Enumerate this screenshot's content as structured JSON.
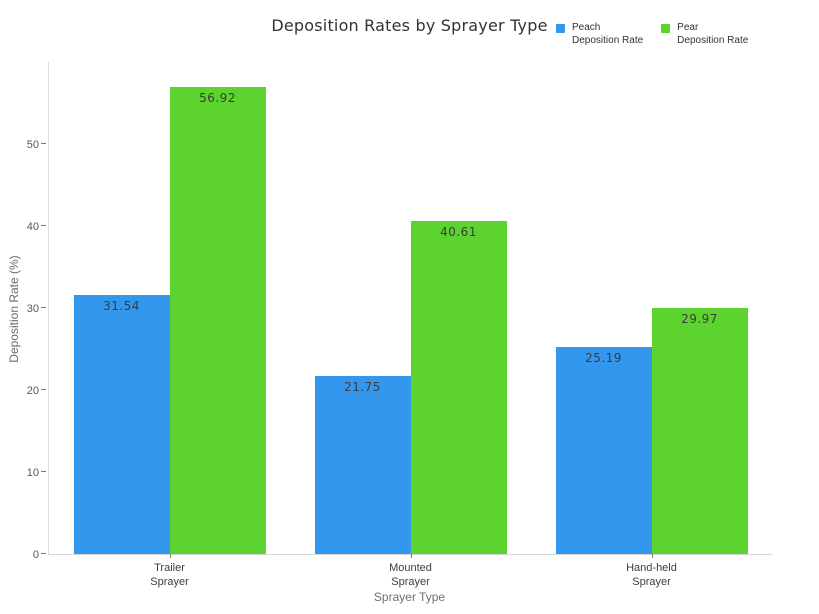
{
  "title": "Deposition Rates by Sprayer Type",
  "legend": {
    "items": [
      {
        "label": "Peach\nDeposition Rate",
        "color": "#3497ee",
        "series": "Peach Deposition Rate"
      },
      {
        "label": "Pear\nDeposition Rate",
        "color": "#5cd32e",
        "series": "Pear Deposition Rate"
      }
    ]
  },
  "chart_data": {
    "type": "bar",
    "title": "Deposition Rates by Sprayer Type",
    "categories": [
      "Trailer\nSprayer",
      "Mounted\nSprayer",
      "Hand-held\nSprayer"
    ],
    "series": [
      {
        "name": "Peach Deposition Rate",
        "color": "#3497ee",
        "values": [
          31.54,
          21.75,
          25.19
        ]
      },
      {
        "name": "Pear Deposition Rate",
        "color": "#5cd32e",
        "values": [
          56.92,
          40.61,
          29.97
        ]
      }
    ],
    "data_labels": [
      "31.54",
      "21.75",
      "25.19",
      "56.92",
      "40.61",
      "29.97"
    ],
    "xlabel": "Sprayer Type",
    "ylabel": "Deposition Rate (%)",
    "ylim": [
      0,
      60
    ],
    "yticks": [
      0,
      10,
      20,
      30,
      40,
      50
    ],
    "grid": false,
    "legend_position": "top-right",
    "bar_value_labels_inside_top": true
  }
}
